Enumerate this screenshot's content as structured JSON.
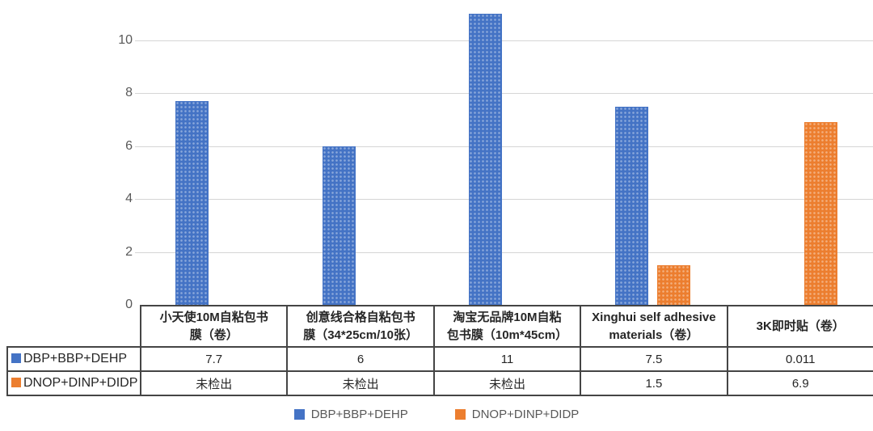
{
  "chart_data": {
    "type": "bar",
    "title": "",
    "xlabel": "",
    "ylabel": "",
    "categories": [
      "小天使10M自粘包书膜（卷）",
      "创意线合格自粘包书膜（34*25cm/10张）",
      "淘宝无品牌10M自粘包书膜（10m*45cm）",
      "Xinghui self adhesive materials（卷）",
      "3K即时贴（卷）"
    ],
    "series": [
      {
        "name": "DBP+BBP+DEHP",
        "color": "#4473C5",
        "values": [
          7.7,
          6,
          11,
          7.5,
          0.011
        ]
      },
      {
        "name": "DNOP+DINP+DIDP",
        "color": "#EC7E2F",
        "values": [
          0,
          0,
          0,
          1.5,
          6.9
        ]
      }
    ],
    "not_detected_label": "未检出",
    "yticks": [
      0,
      2,
      4,
      6,
      8,
      10
    ],
    "ylim": [
      0,
      11.5
    ],
    "grid": true,
    "legend_position": "bottom"
  },
  "table": {
    "row_headers": [
      {
        "label": "DBP+BBP+DEHP",
        "swatch_color": "#4473C5"
      },
      {
        "label": "DNOP+DINP+DIDP",
        "swatch_color": "#EC7E2F"
      }
    ],
    "header_wrap": [
      [
        "小天使10M自粘包书",
        "膜（卷）"
      ],
      [
        "创意线合格自粘包书",
        "膜（34*25cm/10张）"
      ],
      [
        "淘宝无品牌10M自粘",
        "包书膜（10m*45cm）"
      ],
      [
        "Xinghui self adhesive",
        "materials（卷）"
      ],
      [
        "3K即时贴（卷）"
      ]
    ],
    "rows": [
      [
        "7.7",
        "6",
        "11",
        "7.5",
        "0.011"
      ],
      [
        "未检出",
        "未检出",
        "未检出",
        "1.5",
        "6.9"
      ]
    ]
  },
  "legend": {
    "items": [
      {
        "label": "DBP+BBP+DEHP",
        "color": "#4473C5"
      },
      {
        "label": "DNOP+DINP+DIDP",
        "color": "#EC7E2F"
      }
    ]
  },
  "colors": {
    "series_blue": "#4473C5",
    "series_orange": "#EC7E2F",
    "gridline": "#d5d5d5",
    "axis_text": "#595959",
    "table_border": "#454545",
    "table_text": "#262626"
  }
}
